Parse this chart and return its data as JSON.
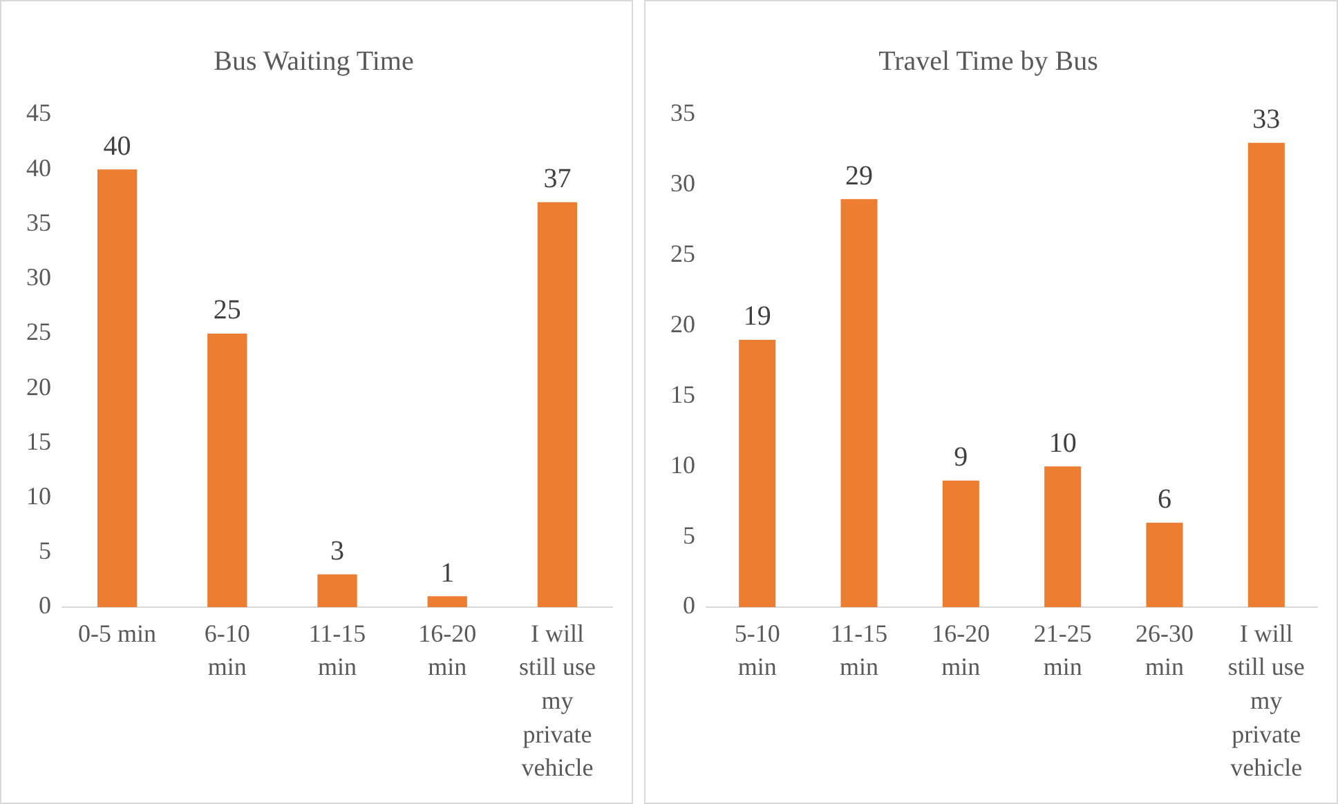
{
  "chart_data": [
    {
      "type": "bar",
      "title": "Bus Waiting Time",
      "categories": [
        "0-5 min",
        "6-10 min",
        "11-15 min",
        "16-20 min",
        "I will still use my private vehicle"
      ],
      "values": [
        40,
        25,
        3,
        1,
        37
      ],
      "color": "#ed7d31",
      "ylim": [
        0,
        45
      ],
      "yticks": [
        0,
        5,
        10,
        15,
        20,
        25,
        30,
        35,
        40,
        45
      ],
      "grid": false,
      "data_labels": true,
      "legend": false
    },
    {
      "type": "bar",
      "title": "Travel Time by Bus",
      "categories": [
        "5-10 min",
        "11-15 min",
        "16-20 min",
        "21-25 min",
        "26-30 min",
        "I will still use my private vehicle"
      ],
      "values": [
        19,
        29,
        9,
        10,
        6,
        33
      ],
      "color": "#ed7d31",
      "ylim": [
        0,
        35
      ],
      "yticks": [
        0,
        5,
        10,
        15,
        20,
        25,
        30,
        35
      ],
      "grid": false,
      "data_labels": true,
      "legend": false
    }
  ]
}
